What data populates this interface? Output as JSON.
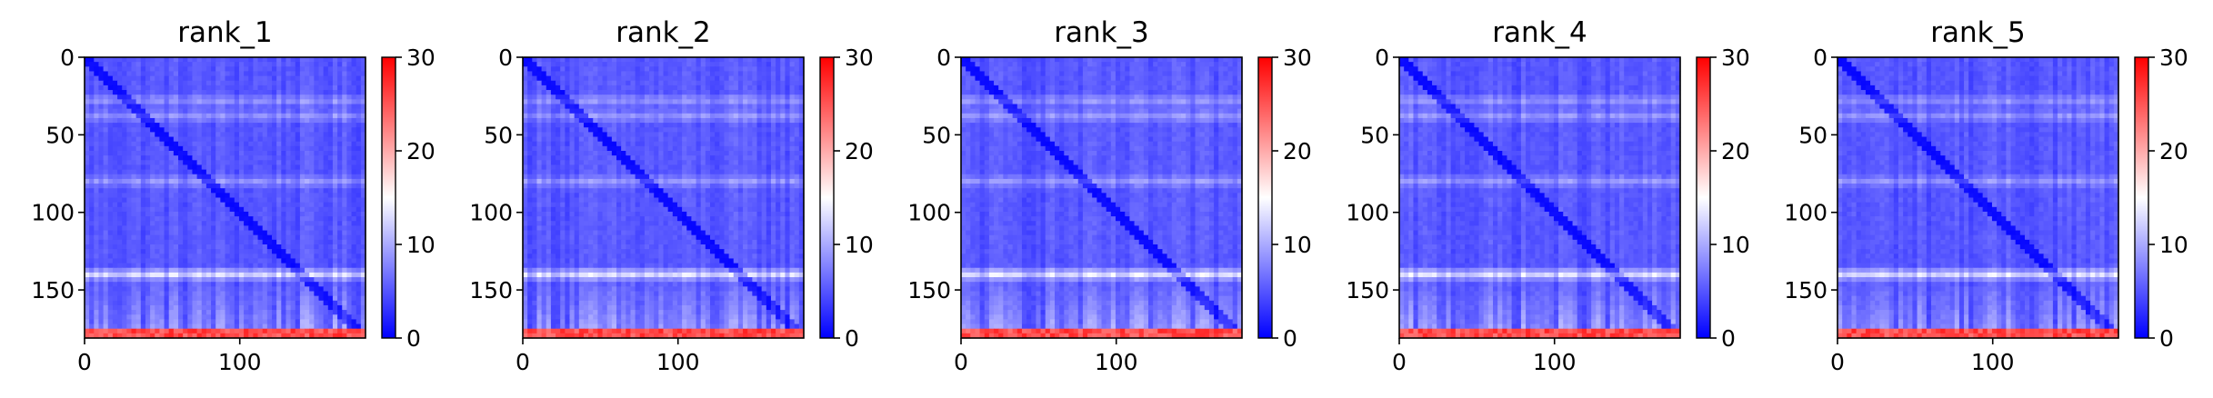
{
  "chart_data": [
    {
      "type": "heatmap",
      "title": "rank_1",
      "xlim": [
        0,
        181
      ],
      "ylim": [
        181,
        0
      ],
      "xticks": [
        0,
        100
      ],
      "xtick_labels": [
        "0",
        "100"
      ],
      "yticks": [
        0,
        50,
        100,
        150
      ],
      "ytick_labels": [
        "0",
        "50",
        "100",
        "150"
      ],
      "colorbar": {
        "cmap": "bwr",
        "vmin": 0,
        "vmax": 30,
        "ticks": [
          0,
          10,
          20,
          30
        ],
        "tick_labels": [
          "0",
          "10",
          "20",
          "30"
        ]
      },
      "grid": false,
      "features": {
        "diagonal_low": true,
        "light_rows": [
          28,
          38,
          80,
          140
        ],
        "red_band_start_row": 176
      }
    },
    {
      "type": "heatmap",
      "title": "rank_2",
      "xlim": [
        0,
        181
      ],
      "ylim": [
        181,
        0
      ],
      "xticks": [
        0,
        100
      ],
      "xtick_labels": [
        "0",
        "100"
      ],
      "yticks": [
        0,
        50,
        100,
        150
      ],
      "ytick_labels": [
        "0",
        "50",
        "100",
        "150"
      ],
      "colorbar": {
        "cmap": "bwr",
        "vmin": 0,
        "vmax": 30,
        "ticks": [
          0,
          10,
          20,
          30
        ],
        "tick_labels": [
          "0",
          "10",
          "20",
          "30"
        ]
      },
      "grid": false,
      "features": {
        "diagonal_low": true,
        "light_rows": [
          28,
          38,
          80,
          140
        ],
        "red_band_start_row": 176
      }
    },
    {
      "type": "heatmap",
      "title": "rank_3",
      "xlim": [
        0,
        181
      ],
      "ylim": [
        181,
        0
      ],
      "xticks": [
        0,
        100
      ],
      "xtick_labels": [
        "0",
        "100"
      ],
      "yticks": [
        0,
        50,
        100,
        150
      ],
      "ytick_labels": [
        "0",
        "50",
        "100",
        "150"
      ],
      "colorbar": {
        "cmap": "bwr",
        "vmin": 0,
        "vmax": 30,
        "ticks": [
          0,
          10,
          20,
          30
        ],
        "tick_labels": [
          "0",
          "10",
          "20",
          "30"
        ]
      },
      "grid": false,
      "features": {
        "diagonal_low": true,
        "light_rows": [
          28,
          38,
          80,
          140
        ],
        "red_band_start_row": 176
      }
    },
    {
      "type": "heatmap",
      "title": "rank_4",
      "xlim": [
        0,
        181
      ],
      "ylim": [
        181,
        0
      ],
      "xticks": [
        0,
        100
      ],
      "xtick_labels": [
        "0",
        "100"
      ],
      "yticks": [
        0,
        50,
        100,
        150
      ],
      "ytick_labels": [
        "0",
        "50",
        "100",
        "150"
      ],
      "colorbar": {
        "cmap": "bwr",
        "vmin": 0,
        "vmax": 30,
        "ticks": [
          0,
          10,
          20,
          30
        ],
        "tick_labels": [
          "0",
          "10",
          "20",
          "30"
        ]
      },
      "grid": false,
      "features": {
        "diagonal_low": true,
        "light_rows": [
          28,
          38,
          80,
          140
        ],
        "red_band_start_row": 176
      }
    },
    {
      "type": "heatmap",
      "title": "rank_5",
      "xlim": [
        0,
        181
      ],
      "ylim": [
        181,
        0
      ],
      "xticks": [
        0,
        100
      ],
      "xtick_labels": [
        "0",
        "100"
      ],
      "yticks": [
        0,
        50,
        100,
        150
      ],
      "ytick_labels": [
        "0",
        "50",
        "100",
        "150"
      ],
      "colorbar": {
        "cmap": "bwr",
        "vmin": 0,
        "vmax": 30,
        "ticks": [
          0,
          10,
          20,
          30
        ],
        "tick_labels": [
          "0",
          "10",
          "20",
          "30"
        ]
      },
      "grid": false,
      "features": {
        "diagonal_low": true,
        "light_rows": [
          28,
          38,
          80,
          140
        ],
        "red_band_start_row": 176
      }
    }
  ],
  "colors": {
    "low": "#0000ff",
    "mid": "#ffffff",
    "high": "#ff0000",
    "axis": "#000000"
  }
}
